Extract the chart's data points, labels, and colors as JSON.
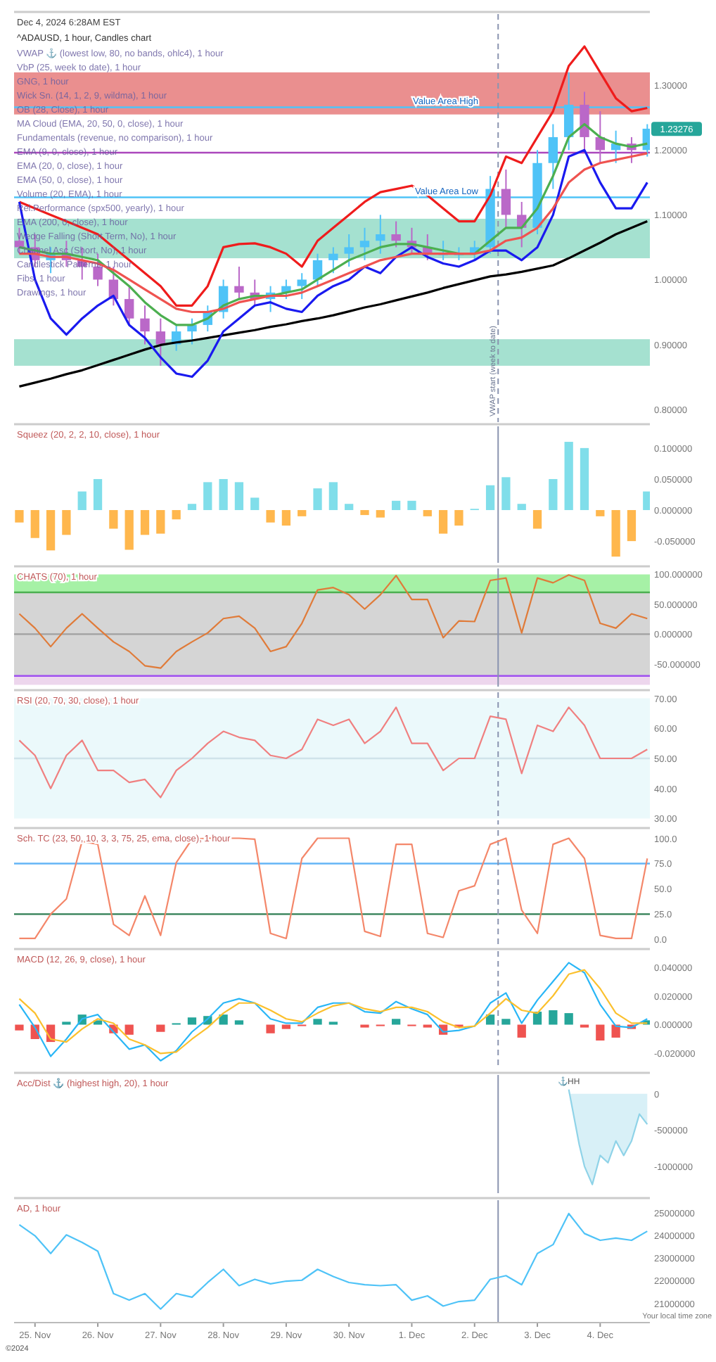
{
  "chart_data": [
    {
      "type": "candlestick",
      "title": "^ADAUSD, 1 hour, Candles chart",
      "subtitle": "Dec 4, 2024 6:28AM EST",
      "x": [
        "2024-11-24T18:00",
        "2024-11-25T00:00",
        "2024-11-25T06:00",
        "2024-11-25T12:00",
        "2024-11-25T18:00",
        "2024-11-26T00:00",
        "2024-11-26T06:00",
        "2024-11-26T12:00",
        "2024-11-26T18:00",
        "2024-11-27T00:00",
        "2024-11-27T06:00",
        "2024-11-27T12:00",
        "2024-11-27T18:00",
        "2024-11-28T00:00",
        "2024-11-28T06:00",
        "2024-11-28T12:00",
        "2024-11-28T18:00",
        "2024-11-29T00:00",
        "2024-11-29T06:00",
        "2024-11-29T12:00",
        "2024-11-29T18:00",
        "2024-11-30T00:00",
        "2024-11-30T06:00",
        "2024-11-30T12:00",
        "2024-11-30T18:00",
        "2024-12-01T00:00",
        "2024-12-01T06:00",
        "2024-12-01T12:00",
        "2024-12-01T18:00",
        "2024-12-02T00:00",
        "2024-12-02T06:00",
        "2024-12-02T12:00",
        "2024-12-02T18:00",
        "2024-12-03T00:00",
        "2024-12-03T06:00",
        "2024-12-03T12:00",
        "2024-12-03T18:00",
        "2024-12-04T00:00",
        "2024-12-04T06:00",
        "2024-12-04T12:00",
        "2024-12-04T18:00"
      ],
      "ohlc": [
        [
          1.06,
          1.08,
          1.04,
          1.05
        ],
        [
          1.05,
          1.07,
          1.02,
          1.03
        ],
        [
          1.03,
          1.05,
          1.01,
          1.04
        ],
        [
          1.04,
          1.06,
          1.02,
          1.03
        ],
        [
          1.03,
          1.05,
          1.0,
          1.02
        ],
        [
          1.02,
          1.04,
          0.99,
          1.0
        ],
        [
          1.0,
          1.02,
          0.96,
          0.97
        ],
        [
          0.97,
          0.99,
          0.93,
          0.94
        ],
        [
          0.94,
          0.96,
          0.9,
          0.92
        ],
        [
          0.92,
          0.94,
          0.867,
          0.9
        ],
        [
          0.9,
          0.93,
          0.89,
          0.92
        ],
        [
          0.92,
          0.94,
          0.9,
          0.93
        ],
        [
          0.93,
          0.96,
          0.92,
          0.95
        ],
        [
          0.95,
          1.0,
          0.94,
          0.99
        ],
        [
          0.99,
          1.02,
          0.97,
          0.98
        ],
        [
          0.98,
          1.0,
          0.96,
          0.97
        ],
        [
          0.97,
          0.99,
          0.95,
          0.98
        ],
        [
          0.98,
          1.0,
          0.97,
          0.99
        ],
        [
          0.99,
          1.01,
          0.97,
          1.0
        ],
        [
          1.0,
          1.04,
          0.99,
          1.03
        ],
        [
          1.03,
          1.05,
          1.01,
          1.04
        ],
        [
          1.04,
          1.07,
          1.02,
          1.05
        ],
        [
          1.05,
          1.08,
          1.03,
          1.06
        ],
        [
          1.06,
          1.1,
          1.04,
          1.07
        ],
        [
          1.07,
          1.09,
          1.05,
          1.06
        ],
        [
          1.06,
          1.08,
          1.04,
          1.05
        ],
        [
          1.05,
          1.07,
          1.03,
          1.04
        ],
        [
          1.04,
          1.06,
          1.03,
          1.04
        ],
        [
          1.04,
          1.05,
          1.03,
          1.04
        ],
        [
          1.04,
          1.06,
          1.03,
          1.05
        ],
        [
          1.05,
          1.16,
          1.04,
          1.14
        ],
        [
          1.14,
          1.17,
          1.08,
          1.1
        ],
        [
          1.1,
          1.12,
          1.05,
          1.08
        ],
        [
          1.08,
          1.2,
          1.07,
          1.18
        ],
        [
          1.18,
          1.24,
          1.14,
          1.22
        ],
        [
          1.22,
          1.32,
          1.2,
          1.27
        ],
        [
          1.27,
          1.29,
          1.2,
          1.22
        ],
        [
          1.22,
          1.26,
          1.18,
          1.2
        ],
        [
          1.2,
          1.23,
          1.18,
          1.21
        ],
        [
          1.21,
          1.22,
          1.18,
          1.2
        ],
        [
          1.2,
          1.24,
          1.19,
          1.233
        ]
      ],
      "colors": [
        "#ba68c8",
        "#ba68c8",
        "#4fc3f7",
        "#ba68c8",
        "#ba68c8",
        "#ba68c8",
        "#ba68c8",
        "#ba68c8",
        "#ba68c8",
        "#ba68c8",
        "#4fc3f7",
        "#4fc3f7",
        "#4fc3f7",
        "#4fc3f7",
        "#ba68c8",
        "#ba68c8",
        "#4fc3f7",
        "#4fc3f7",
        "#4fc3f7",
        "#4fc3f7",
        "#4fc3f7",
        "#4fc3f7",
        "#4fc3f7",
        "#4fc3f7",
        "#ba68c8",
        "#ba68c8",
        "#ba68c8",
        "#4fc3f7",
        "#4fc3f7",
        "#4fc3f7",
        "#4fc3f7",
        "#ba68c8",
        "#ba68c8",
        "#4fc3f7",
        "#4fc3f7",
        "#4fc3f7",
        "#ba68c8",
        "#ba68c8",
        "#4fc3f7",
        "#ba68c8",
        "#4fc3f7"
      ],
      "series": [
        {
          "type": "line",
          "color": "#000000",
          "values": [
            0.835,
            0.841,
            0.847,
            0.854,
            0.86,
            0.868,
            0.876,
            0.884,
            0.892,
            0.899,
            0.903,
            0.906,
            0.91,
            0.914,
            0.918,
            0.922,
            0.927,
            0.931,
            0.936,
            0.94,
            0.945,
            0.951,
            0.957,
            0.962,
            0.968,
            0.974,
            0.98,
            0.987,
            0.993,
            0.999,
            1.005,
            1.008,
            1.012,
            1.017,
            1.022,
            1.033,
            1.045,
            1.057,
            1.07,
            1.08,
            1.09
          ]
        },
        {
          "type": "line",
          "color": "#ef1c1c",
          "values": [
            1.12,
            1.11,
            1.1,
            1.09,
            1.08,
            1.07,
            1.05,
            1.03,
            1.01,
            0.99,
            0.96,
            0.96,
            0.99,
            1.05,
            1.055,
            1.056,
            1.05,
            1.04,
            1.02,
            1.06,
            1.08,
            1.1,
            1.12,
            1.135,
            1.14,
            1.145,
            1.13,
            1.11,
            1.09,
            1.09,
            1.13,
            1.19,
            1.18,
            1.22,
            1.26,
            1.33,
            1.36,
            1.32,
            1.28,
            1.26,
            1.265
          ]
        },
        {
          "type": "line",
          "color": "#1a1aef",
          "values": [
            1.12,
            1.0,
            0.94,
            0.915,
            0.94,
            0.96,
            0.975,
            0.93,
            0.91,
            0.88,
            0.855,
            0.85,
            0.875,
            0.92,
            0.94,
            0.96,
            0.965,
            0.955,
            0.95,
            0.975,
            0.99,
            1.0,
            1.02,
            1.01,
            1.035,
            1.05,
            1.035,
            1.025,
            1.02,
            1.03,
            1.045,
            1.045,
            1.03,
            1.05,
            1.1,
            1.19,
            1.2,
            1.15,
            1.11,
            1.11,
            1.15
          ]
        },
        {
          "type": "line",
          "color": "#4caf50",
          "values": [
            1.05,
            1.045,
            1.04,
            1.04,
            1.035,
            1.03,
            1.01,
            0.99,
            0.965,
            0.945,
            0.93,
            0.93,
            0.94,
            0.96,
            0.97,
            0.975,
            0.975,
            0.98,
            0.985,
            1.0,
            1.015,
            1.03,
            1.04,
            1.05,
            1.055,
            1.055,
            1.05,
            1.045,
            1.04,
            1.04,
            1.06,
            1.08,
            1.08,
            1.11,
            1.16,
            1.22,
            1.24,
            1.22,
            1.21,
            1.205,
            1.21
          ]
        },
        {
          "type": "line",
          "color": "#ef5350",
          "values": [
            1.04,
            1.04,
            1.035,
            1.035,
            1.03,
            1.025,
            1.015,
            1.0,
            0.985,
            0.97,
            0.955,
            0.95,
            0.95,
            0.955,
            0.965,
            0.97,
            0.975,
            0.975,
            0.98,
            0.99,
            1.0,
            1.01,
            1.02,
            1.03,
            1.035,
            1.04,
            1.04,
            1.04,
            1.04,
            1.04,
            1.045,
            1.06,
            1.065,
            1.08,
            1.11,
            1.15,
            1.17,
            1.18,
            1.185,
            1.19,
            1.195
          ]
        }
      ],
      "xlim": [
        "2024-11-24T16:00",
        "2024-12-04T19:00"
      ],
      "ylim": [
        0.78,
        1.41
      ],
      "yticks": [
        {
          "value": 0.8,
          "label": "0.80000"
        },
        {
          "value": 0.9,
          "label": "0.90000"
        },
        {
          "value": 1.0,
          "label": "1.00000"
        },
        {
          "value": 1.1,
          "label": "1.10000"
        },
        {
          "value": 1.2,
          "label": "1.20000"
        },
        {
          "value": 1.3,
          "label": "1.30000"
        }
      ],
      "tick_labels": "y",
      "bands": [
        {
          "axis": "y",
          "from": 0.867,
          "to": 0.908,
          "color": "#8fd9c4"
        },
        {
          "axis": "y",
          "from": 1.033,
          "to": 1.094,
          "color": "#8fd9c4"
        },
        {
          "axis": "y",
          "from": 1.255,
          "to": 1.32,
          "color": "#e57373"
        }
      ],
      "ref_lines": [
        {
          "axis": "y",
          "value": 1.266,
          "label": "Value Area High",
          "color": "#4fc3f7"
        },
        {
          "axis": "y",
          "value": 1.127,
          "label": "Value Area Low",
          "color": "#4fc3f7"
        },
        {
          "axis": "y",
          "value": 1.196,
          "color": "#ab47bc"
        },
        {
          "axis": "x",
          "value": "2024-12-02T09:00",
          "label": "VWAP start (week to date)",
          "color": "#8a94b0",
          "line_style": "dashed"
        }
      ],
      "annotations": [
        "VWAP ⚓ (lowest low, 80, no bands, ohlc4), 1 hour",
        "VbP (25, week to date), 1 hour",
        "GNG, 1 hour",
        "Wick Sn. (14, 1, 2, 9, wildma), 1 hour",
        "OB (28, Close), 1 hour",
        "MA Cloud (EMA, 20, 50, 0, close), 1 hour",
        "Fundamentals (revenue, no comparison), 1 hour",
        "EMA (9, 0, close), 1 hour",
        "EMA (20, 0, close), 1 hour",
        "EMA (50, 0, close), 1 hour",
        "Volume (20, EMA), 1 hour",
        "Rel.Performance (spx500, yearly), 1 hour",
        "EMA (200, 0, close), 1 hour",
        "Wedge Falling (Short Term, No), 1 hour",
        "Channel Asc (Short, No), 1 hour",
        "Candlestick Patterns, 1 hour",
        "Fibs, 1 hour",
        "Drawings, 1 hour",
        {
          "text": "1.23276",
          "x": "2024-12-04T18:00",
          "y": 1.23276
        }
      ]
    },
    {
      "type": "bar",
      "title": "Squeez (20, 2, 2, 10, close), 1 hour",
      "x": [
        "2024-11-24T18:00",
        "2024-11-25T00:00",
        "2024-11-25T06:00",
        "2024-11-25T12:00",
        "2024-11-25T18:00",
        "2024-11-26T00:00",
        "2024-11-26T06:00",
        "2024-11-26T12:00",
        "2024-11-26T18:00",
        "2024-11-27T00:00",
        "2024-11-27T06:00",
        "2024-11-27T12:00",
        "2024-11-27T18:00",
        "2024-11-28T00:00",
        "2024-11-28T06:00",
        "2024-11-28T12:00",
        "2024-11-28T18:00",
        "2024-11-29T00:00",
        "2024-11-29T06:00",
        "2024-11-29T12:00",
        "2024-11-29T18:00",
        "2024-11-30T00:00",
        "2024-11-30T06:00",
        "2024-11-30T12:00",
        "2024-11-30T18:00",
        "2024-12-01T00:00",
        "2024-12-01T06:00",
        "2024-12-01T12:00",
        "2024-12-01T18:00",
        "2024-12-02T00:00",
        "2024-12-02T06:00",
        "2024-12-02T12:00",
        "2024-12-02T18:00",
        "2024-12-03T00:00",
        "2024-12-03T06:00",
        "2024-12-03T12:00",
        "2024-12-03T18:00",
        "2024-12-04T00:00",
        "2024-12-04T06:00",
        "2024-12-04T12:00",
        "2024-12-04T18:00"
      ],
      "series": [
        {
          "values": [
            -0.02,
            -0.045,
            -0.065,
            -0.04,
            0.03,
            0.05,
            -0.03,
            -0.064,
            -0.04,
            -0.038,
            -0.015,
            0.01,
            0.045,
            0.05,
            0.045,
            0.02,
            -0.02,
            -0.025,
            -0.01,
            0.035,
            0.045,
            0.01,
            -0.008,
            -0.012,
            0.015,
            0.015,
            -0.01,
            -0.038,
            -0.025,
            0.002,
            0.04,
            0.053,
            0.01,
            -0.03,
            0.05,
            0.11,
            0.1,
            -0.01,
            -0.075,
            -0.05,
            0.03
          ],
          "colors": [
            "#ffb74d",
            "#ffb74d",
            "#ffb74d",
            "#ffb74d",
            "#80deea",
            "#80deea",
            "#ffb74d",
            "#ffb74d",
            "#ffb74d",
            "#ffb74d",
            "#ffb74d",
            "#80deea",
            "#80deea",
            "#80deea",
            "#80deea",
            "#80deea",
            "#ffb74d",
            "#ffb74d",
            "#ffb74d",
            "#80deea",
            "#80deea",
            "#80deea",
            "#ffb74d",
            "#ffb74d",
            "#80deea",
            "#80deea",
            "#ffb74d",
            "#ffb74d",
            "#ffb74d",
            "#80deea",
            "#80deea",
            "#80deea",
            "#80deea",
            "#ffb74d",
            "#80deea",
            "#80deea",
            "#80deea",
            "#ffb74d",
            "#ffb74d",
            "#ffb74d",
            "#80deea"
          ]
        }
      ],
      "xlim": [
        "2024-11-24T16:00",
        "2024-12-04T19:00"
      ],
      "ylim": [
        -0.085,
        0.135
      ],
      "yticks": [
        {
          "value": -0.05,
          "label": "-0.050000"
        },
        {
          "value": 0,
          "label": "0.000000"
        },
        {
          "value": 0.05,
          "label": "0.050000"
        },
        {
          "value": 0.1,
          "label": "0.100000"
        }
      ],
      "tick_labels": "y",
      "ref_lines": [
        {
          "axis": "x",
          "value": "2024-12-02T09:00",
          "color": "#8a94b0"
        }
      ]
    },
    {
      "type": "line",
      "title": "CHATS (70), 1 hour",
      "x": [
        "2024-11-24T18:00",
        "2024-11-25T00:00",
        "2024-11-25T06:00",
        "2024-11-25T12:00",
        "2024-11-25T18:00",
        "2024-11-26T00:00",
        "2024-11-26T06:00",
        "2024-11-26T12:00",
        "2024-11-26T18:00",
        "2024-11-27T00:00",
        "2024-11-27T06:00",
        "2024-11-27T12:00",
        "2024-11-27T18:00",
        "2024-11-28T00:00",
        "2024-11-28T06:00",
        "2024-11-28T12:00",
        "2024-11-28T18:00",
        "2024-11-29T00:00",
        "2024-11-29T06:00",
        "2024-11-29T12:00",
        "2024-11-29T18:00",
        "2024-11-30T00:00",
        "2024-11-30T06:00",
        "2024-11-30T12:00",
        "2024-11-30T18:00",
        "2024-12-01T00:00",
        "2024-12-01T06:00",
        "2024-12-01T12:00",
        "2024-12-01T18:00",
        "2024-12-02T00:00",
        "2024-12-02T06:00",
        "2024-12-02T12:00",
        "2024-12-02T18:00",
        "2024-12-03T00:00",
        "2024-12-03T06:00",
        "2024-12-03T12:00",
        "2024-12-03T18:00",
        "2024-12-04T00:00",
        "2024-12-04T06:00",
        "2024-12-04T12:00",
        "2024-12-04T18:00"
      ],
      "series": [
        {
          "color": "#e07b39",
          "values": [
            34,
            10,
            -21,
            10,
            34,
            10,
            -13,
            -29,
            -53,
            -57,
            -29,
            -13,
            2,
            26,
            30,
            10,
            -29,
            -21,
            18,
            74,
            78,
            66,
            42,
            66,
            98,
            58,
            58,
            -6,
            22,
            21,
            90,
            94,
            2,
            94,
            86,
            99,
            90,
            18,
            10,
            34,
            26
          ]
        }
      ],
      "xlim": [
        "2024-11-24T16:00",
        "2024-12-04T19:00"
      ],
      "ylim": [
        -88,
        110
      ],
      "yticks": [
        {
          "value": -50,
          "label": "-50.000000"
        },
        {
          "value": 0,
          "label": "0.000000"
        },
        {
          "value": 50,
          "label": "50.000000"
        },
        {
          "value": 100,
          "label": "100.000000"
        }
      ],
      "tick_labels": "y",
      "bands": [
        {
          "axis": "y",
          "from": 70,
          "to": 100,
          "color": "#90ee90"
        },
        {
          "axis": "y",
          "from": -70,
          "to": 70,
          "color": "#cacaca"
        },
        {
          "axis": "y",
          "from": -85,
          "to": -70,
          "color": "#e8cce8"
        }
      ],
      "ref_lines": [
        {
          "axis": "y",
          "value": 70,
          "color": "#4caf50"
        },
        {
          "axis": "y",
          "value": 0,
          "color": "#a0a0a0"
        },
        {
          "axis": "y",
          "value": -70,
          "color": "#a050f0"
        },
        {
          "axis": "x",
          "value": "2024-12-02T09:00",
          "color": "#8a94b0"
        }
      ]
    },
    {
      "type": "line",
      "title": "RSI (20, 70, 30, close), 1 hour",
      "x": [
        "2024-11-24T18:00",
        "2024-11-25T00:00",
        "2024-11-25T06:00",
        "2024-11-25T12:00",
        "2024-11-25T18:00",
        "2024-11-26T00:00",
        "2024-11-26T06:00",
        "2024-11-26T12:00",
        "2024-11-26T18:00",
        "2024-11-27T00:00",
        "2024-11-27T06:00",
        "2024-11-27T12:00",
        "2024-11-27T18:00",
        "2024-11-28T00:00",
        "2024-11-28T06:00",
        "2024-11-28T12:00",
        "2024-11-28T18:00",
        "2024-11-29T00:00",
        "2024-11-29T06:00",
        "2024-11-29T12:00",
        "2024-11-29T18:00",
        "2024-11-30T00:00",
        "2024-11-30T06:00",
        "2024-11-30T12:00",
        "2024-11-30T18:00",
        "2024-12-01T00:00",
        "2024-12-01T06:00",
        "2024-12-01T12:00",
        "2024-12-01T18:00",
        "2024-12-02T00:00",
        "2024-12-02T06:00",
        "2024-12-02T12:00",
        "2024-12-02T18:00",
        "2024-12-03T00:00",
        "2024-12-03T06:00",
        "2024-12-03T12:00",
        "2024-12-03T18:00",
        "2024-12-04T00:00",
        "2024-12-04T06:00",
        "2024-12-04T12:00",
        "2024-12-04T18:00"
      ],
      "series": [
        {
          "color": "#f08080",
          "values": [
            56,
            51,
            40,
            51,
            56,
            46,
            46,
            42,
            43,
            37,
            46,
            50,
            55,
            59,
            57,
            56,
            51,
            50,
            53,
            63,
            61,
            63,
            55,
            59,
            67,
            55,
            55,
            46,
            50,
            50,
            64,
            63,
            45,
            61,
            59,
            67,
            61,
            50,
            50,
            50,
            53
          ]
        }
      ],
      "xlim": [
        "2024-11-24T16:00",
        "2024-12-04T19:00"
      ],
      "ylim": [
        28,
        72
      ],
      "yticks": [
        {
          "value": 30,
          "label": "30.00"
        },
        {
          "value": 40,
          "label": "40.00"
        },
        {
          "value": 50,
          "label": "50.00"
        },
        {
          "value": 60,
          "label": "60.00"
        },
        {
          "value": 70,
          "label": "70.00"
        }
      ],
      "tick_labels": "y",
      "bands": [
        {
          "axis": "y",
          "from": 30,
          "to": 70,
          "color": "#e6f7fa"
        }
      ],
      "ref_lines": [
        {
          "axis": "y",
          "value": 50,
          "color": "#cfe3ea"
        },
        {
          "axis": "x",
          "value": "2024-12-02T09:00",
          "color": "#8a94b0",
          "line_style": "dashed"
        }
      ]
    },
    {
      "type": "line",
      "title": "Sch. TC (23, 50, 10, 3, 3, 75, 25, ema, close), 1 hour",
      "x": [
        "2024-11-24T18:00",
        "2024-11-25T00:00",
        "2024-11-25T06:00",
        "2024-11-25T12:00",
        "2024-11-25T18:00",
        "2024-11-26T00:00",
        "2024-11-26T06:00",
        "2024-11-26T12:00",
        "2024-11-26T18:00",
        "2024-11-27T00:00",
        "2024-11-27T06:00",
        "2024-11-27T12:00",
        "2024-11-27T18:00",
        "2024-11-28T00:00",
        "2024-11-28T06:00",
        "2024-11-28T12:00",
        "2024-11-28T18:00",
        "2024-11-29T00:00",
        "2024-11-29T06:00",
        "2024-11-29T12:00",
        "2024-11-29T18:00",
        "2024-11-30T00:00",
        "2024-11-30T06:00",
        "2024-11-30T12:00",
        "2024-11-30T18:00",
        "2024-12-01T00:00",
        "2024-12-01T06:00",
        "2024-12-01T12:00",
        "2024-12-01T18:00",
        "2024-12-02T00:00",
        "2024-12-02T06:00",
        "2024-12-02T12:00",
        "2024-12-02T18:00",
        "2024-12-03T00:00",
        "2024-12-03T06:00",
        "2024-12-03T12:00",
        "2024-12-03T18:00",
        "2024-12-04T00:00",
        "2024-12-04T06:00",
        "2024-12-04T12:00",
        "2024-12-04T18:00"
      ],
      "series": [
        {
          "color": "#f4876a",
          "values": [
            1,
            1,
            25,
            40,
            97,
            94,
            15,
            4,
            43,
            4,
            76,
            99,
            100,
            100,
            100,
            99,
            6,
            1,
            80,
            100,
            100,
            100,
            8,
            3,
            94,
            94,
            6,
            2,
            48,
            53,
            94,
            100,
            29,
            6,
            94,
            100,
            80,
            4,
            1,
            1,
            80
          ]
        }
      ],
      "xlim": [
        "2024-11-24T16:00",
        "2024-12-04T19:00"
      ],
      "ylim": [
        -6,
        108
      ],
      "yticks": [
        {
          "value": 0,
          "label": "0.0"
        },
        {
          "value": 25,
          "label": "25.0"
        },
        {
          "value": 50,
          "label": "50.0"
        },
        {
          "value": 75,
          "label": "75.0"
        },
        {
          "value": 100,
          "label": "100.0"
        }
      ],
      "tick_labels": "y",
      "ref_lines": [
        {
          "axis": "y",
          "value": 75,
          "color": "#64b5f6"
        },
        {
          "axis": "y",
          "value": 25,
          "color": "#2e7d52"
        },
        {
          "axis": "x",
          "value": "2024-12-02T09:00",
          "color": "#8a94b0",
          "line_style": "dashed"
        }
      ]
    },
    {
      "type": "line",
      "title": "MACD (12, 26, 9, close), 1 hour",
      "x": [
        "2024-11-24T18:00",
        "2024-11-25T00:00",
        "2024-11-25T06:00",
        "2024-11-25T12:00",
        "2024-11-25T18:00",
        "2024-11-26T00:00",
        "2024-11-26T06:00",
        "2024-11-26T12:00",
        "2024-11-26T18:00",
        "2024-11-27T00:00",
        "2024-11-27T06:00",
        "2024-11-27T12:00",
        "2024-11-27T18:00",
        "2024-11-28T00:00",
        "2024-11-28T06:00",
        "2024-11-28T12:00",
        "2024-11-28T18:00",
        "2024-11-29T00:00",
        "2024-11-29T06:00",
        "2024-11-29T12:00",
        "2024-11-29T18:00",
        "2024-11-30T00:00",
        "2024-11-30T06:00",
        "2024-11-30T12:00",
        "2024-11-30T18:00",
        "2024-12-01T00:00",
        "2024-12-01T06:00",
        "2024-12-01T12:00",
        "2024-12-01T18:00",
        "2024-12-02T00:00",
        "2024-12-02T06:00",
        "2024-12-02T12:00",
        "2024-12-02T18:00",
        "2024-12-03T00:00",
        "2024-12-03T06:00",
        "2024-12-03T12:00",
        "2024-12-03T18:00",
        "2024-12-04T00:00",
        "2024-12-04T06:00",
        "2024-12-04T12:00",
        "2024-12-04T18:00"
      ],
      "series": [
        {
          "type": "bar",
          "values": [
            -0.004,
            -0.01,
            -0.012,
            0.002,
            0.007,
            0.003,
            -0.006,
            -0.007,
            0,
            -0.005,
            0.001,
            0.005,
            0.006,
            0.007,
            0.003,
            0,
            -0.006,
            -0.003,
            -0.001,
            0.004,
            0.002,
            0,
            -0.002,
            -0.001,
            0.004,
            -0.001,
            -0.002,
            -0.007,
            -0.002,
            0,
            0.007,
            0.004,
            -0.009,
            0.009,
            0.01,
            0.008,
            -0.002,
            -0.011,
            -0.009,
            -0.003,
            0.003
          ],
          "colors": [
            "#ef5350",
            "#ef5350",
            "#ef5350",
            "#26a69a",
            "#26a69a",
            "#26a69a",
            "#ef5350",
            "#ef5350",
            "#26a69a",
            "#ef5350",
            "#26a69a",
            "#26a69a",
            "#26a69a",
            "#26a69a",
            "#26a69a",
            "#26a69a",
            "#ef5350",
            "#ef5350",
            "#ef5350",
            "#26a69a",
            "#26a69a",
            "#26a69a",
            "#ef5350",
            "#ef5350",
            "#26a69a",
            "#ef5350",
            "#ef5350",
            "#ef5350",
            "#ef5350",
            "#26a69a",
            "#26a69a",
            "#26a69a",
            "#ef5350",
            "#26a69a",
            "#26a69a",
            "#26a69a",
            "#ef5350",
            "#ef5350",
            "#ef5350",
            "#ef5350",
            "#26a69a"
          ]
        },
        {
          "color": "#29b6f6",
          "values": [
            0.014,
            -0.002,
            -0.022,
            -0.01,
            0.004,
            0.007,
            -0.005,
            -0.017,
            -0.014,
            -0.025,
            -0.018,
            -0.005,
            0.004,
            0.015,
            0.018,
            0.015,
            0.004,
            0.001,
            0.001,
            0.012,
            0.015,
            0.015,
            0.009,
            0.008,
            0.016,
            0.011,
            0.007,
            -0.005,
            -0.004,
            -0.001,
            0.015,
            0.022,
            0.001,
            0.017,
            0.03,
            0.043,
            0.036,
            0.014,
            -0.001,
            -0.002,
            0.004
          ]
        },
        {
          "color": "#fbc02d",
          "values": [
            0.018,
            0.008,
            -0.01,
            -0.012,
            -0.003,
            0.004,
            0.001,
            -0.01,
            -0.014,
            -0.02,
            -0.019,
            -0.01,
            -0.002,
            0.008,
            0.015,
            0.015,
            0.01,
            0.004,
            0.002,
            0.008,
            0.013,
            0.015,
            0.011,
            0.009,
            0.012,
            0.012,
            0.009,
            0.002,
            -0.002,
            -0.001,
            0.008,
            0.018,
            0.01,
            0.008,
            0.02,
            0.035,
            0.038,
            0.025,
            0.008,
            0.001,
            0.001
          ]
        }
      ],
      "xlim": [
        "2024-11-24T16:00",
        "2024-12-04T19:00"
      ],
      "ylim": [
        -0.031,
        0.051
      ],
      "yticks": [
        {
          "value": -0.02,
          "label": "-0.020000"
        },
        {
          "value": 0,
          "label": "0.000000"
        },
        {
          "value": 0.02,
          "label": "0.020000"
        },
        {
          "value": 0.04,
          "label": "0.040000"
        }
      ],
      "tick_labels": "y",
      "ref_lines": [
        {
          "axis": "x",
          "value": "2024-12-02T09:00",
          "color": "#8a94b0",
          "line_style": "dashed"
        }
      ]
    },
    {
      "type": "area",
      "title": "Acc/Dist ⚓ (highest high, 20), 1 hour",
      "series": [
        {
          "color": "#8fd3e8",
          "x": [
            "2024-12-03T12:00",
            "2024-12-03T16:00",
            "2024-12-03T18:00",
            "2024-12-03T21:00",
            "2024-12-04T00:00",
            "2024-12-04T03:00",
            "2024-12-04T06:00",
            "2024-12-04T09:00",
            "2024-12-04T12:00",
            "2024-12-04T15:00",
            "2024-12-04T18:00"
          ],
          "values": [
            60000,
            -700000,
            -1000000,
            -1250000,
            -850000,
            -950000,
            -650000,
            -850000,
            -650000,
            -280000,
            -420000
          ]
        }
      ],
      "xlim": [
        "2024-11-24T16:00",
        "2024-12-04T19:00"
      ],
      "ylim": [
        -1370000,
        260000
      ],
      "yticks": [
        {
          "value": -1000000,
          "label": "-1000000"
        },
        {
          "value": -500000,
          "label": "-500000"
        },
        0
      ],
      "tick_labels": "y",
      "ref_lines": [
        {
          "axis": "x",
          "value": "2024-12-02T09:00",
          "color": "#8a94b0"
        }
      ],
      "annotations": [
        {
          "text": "⚓HH",
          "x": "2024-12-03T12:00",
          "y": 60000
        }
      ]
    },
    {
      "type": "line",
      "title": "AD, 1 hour",
      "x": [
        "2024-11-24T18:00",
        "2024-11-25T00:00",
        "2024-11-25T06:00",
        "2024-11-25T12:00",
        "2024-11-25T18:00",
        "2024-11-26T00:00",
        "2024-11-26T06:00",
        "2024-11-26T12:00",
        "2024-11-26T18:00",
        "2024-11-27T00:00",
        "2024-11-27T06:00",
        "2024-11-27T12:00",
        "2024-11-27T18:00",
        "2024-11-28T00:00",
        "2024-11-28T06:00",
        "2024-11-28T12:00",
        "2024-11-28T18:00",
        "2024-11-29T00:00",
        "2024-11-29T06:00",
        "2024-11-29T12:00",
        "2024-11-29T18:00",
        "2024-11-30T00:00",
        "2024-11-30T06:00",
        "2024-11-30T12:00",
        "2024-11-30T18:00",
        "2024-12-01T00:00",
        "2024-12-01T06:00",
        "2024-12-01T12:00",
        "2024-12-01T18:00",
        "2024-12-02T00:00",
        "2024-12-02T06:00",
        "2024-12-02T12:00",
        "2024-12-02T18:00",
        "2024-12-03T00:00",
        "2024-12-03T06:00",
        "2024-12-03T12:00",
        "2024-12-03T18:00",
        "2024-12-04T00:00",
        "2024-12-04T06:00",
        "2024-12-04T12:00",
        "2024-12-04T18:00"
      ],
      "series": [
        {
          "color": "#4fc3f7",
          "values": [
            24470000,
            23980000,
            23200000,
            24020000,
            23690000,
            23300000,
            21430000,
            21140000,
            21430000,
            20750000,
            21430000,
            21270000,
            21920000,
            22500000,
            21780000,
            22060000,
            21860000,
            21980000,
            22020000,
            22500000,
            22180000,
            21920000,
            21820000,
            21780000,
            21820000,
            21140000,
            21330000,
            20880000,
            21080000,
            21140000,
            22060000,
            22220000,
            21820000,
            23200000,
            23590000,
            24960000,
            24080000,
            23780000,
            23880000,
            23780000,
            24180000
          ]
        }
      ],
      "xlim": [
        "2024-11-24T16:00",
        "2024-12-04T19:00"
      ],
      "ylim": [
        20150000,
        25550000
      ],
      "yticks": [
        21000000,
        22000000,
        23000000,
        24000000,
        25000000
      ],
      "xticks": [
        {
          "value": "2024-11-25T00:00",
          "label": "25. Nov"
        },
        {
          "value": "2024-11-26T00:00",
          "label": "26. Nov"
        },
        {
          "value": "2024-11-27T00:00",
          "label": "27. Nov"
        },
        {
          "value": "2024-11-28T00:00",
          "label": "28. Nov"
        },
        {
          "value": "2024-11-29T00:00",
          "label": "29. Nov"
        },
        {
          "value": "2024-11-30T00:00",
          "label": "30. Nov"
        },
        {
          "value": "2024-12-01T00:00",
          "label": "1. Dec"
        },
        {
          "value": "2024-12-02T00:00",
          "label": "2. Dec"
        },
        {
          "value": "2024-12-03T00:00",
          "label": "3. Dec"
        },
        {
          "value": "2024-12-04T00:00",
          "label": "4. Dec"
        }
      ],
      "ref_lines": [
        {
          "axis": "x",
          "value": "2024-12-02T09:00",
          "color": "#8a94b0"
        }
      ],
      "annotations": [
        "Your local time zone",
        "©2024"
      ]
    }
  ]
}
